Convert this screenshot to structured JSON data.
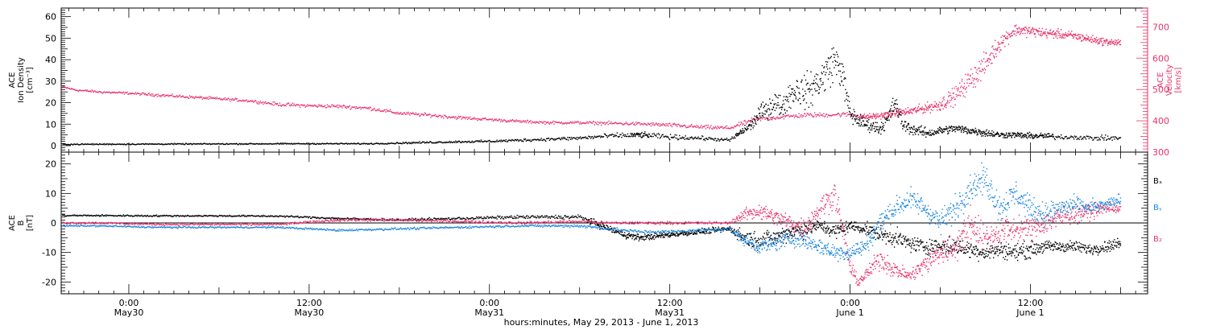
{
  "colors": {
    "axis": "#000000",
    "density": "#000000",
    "velocity": "#e8336a",
    "bx": "#000000",
    "by": "#1a86e0",
    "bz": "#e8336a"
  },
  "chart_data": [
    {
      "type": "scatter",
      "panel": "top",
      "ylabel_left_lines": [
        "ACE",
        "Ion Density",
        "[cm⁻³]"
      ],
      "ylabel_right_lines": [
        "ACE",
        "Velocity",
        "[km/s]"
      ],
      "ylim": [
        -3,
        64
      ],
      "yticks": [
        0,
        10,
        20,
        30,
        40,
        50,
        60
      ],
      "ylim_right": [
        300,
        760
      ],
      "yticks_right": [
        300,
        400,
        500,
        600,
        700
      ],
      "x_unit": "hours since 2013-05-29 00:00 UT",
      "xlim": [
        19.5,
        91.8
      ],
      "series": [
        {
          "key": "density",
          "axis": "left",
          "x": [
            19.6,
            24,
            30,
            36,
            40,
            42,
            44,
            46,
            48,
            50,
            52,
            54,
            56,
            58,
            60,
            62,
            63,
            64,
            65.5,
            66,
            66.5,
            67,
            67.5,
            68,
            68.5,
            69,
            69.5,
            70,
            70.5,
            71,
            71.5,
            72,
            72.5,
            73,
            73.5,
            74,
            74.5,
            75,
            75.5,
            76,
            76.5,
            77,
            77.5,
            78,
            79,
            80,
            81,
            82,
            83,
            84,
            85,
            86,
            87,
            88,
            89,
            90
          ],
          "y": [
            0.6,
            0.7,
            0.8,
            0.9,
            0.9,
            1.2,
            1.5,
            1.8,
            2.0,
            2.5,
            3.0,
            3.5,
            4.5,
            5.0,
            4.0,
            3.5,
            3.0,
            2.5,
            10,
            15,
            17,
            20,
            18,
            24,
            26,
            25,
            27,
            30,
            35,
            40,
            33,
            15,
            12,
            10,
            9,
            8,
            12,
            20,
            10,
            8,
            7,
            6,
            6,
            7,
            8,
            7,
            6,
            5,
            5,
            4.5,
            4.5,
            4,
            4,
            3.5,
            3.5,
            3.5
          ],
          "spread": [
            0.3,
            0.3,
            0.3,
            0.3,
            0.3,
            0.4,
            0.5,
            0.5,
            0.6,
            0.7,
            0.8,
            1.0,
            1.2,
            1.4,
            1.2,
            1.0,
            0.9,
            0.8,
            3,
            4,
            5,
            6,
            5,
            7,
            8,
            8,
            9,
            9,
            10,
            9,
            8,
            5,
            4,
            3,
            3,
            3,
            4,
            5,
            3,
            3,
            2.5,
            2.5,
            2,
            2,
            2,
            2,
            2,
            1.5,
            1.5,
            1.5,
            1.5,
            1.2,
            1.2,
            1.2,
            1.2,
            1.2
          ]
        },
        {
          "key": "velocity",
          "axis": "right",
          "x": [
            19.6,
            20.5,
            22,
            24,
            26,
            28,
            30,
            32,
            33,
            34,
            36,
            38,
            40,
            41,
            42,
            44,
            46,
            48,
            50,
            52,
            54,
            56,
            58,
            60,
            62,
            63,
            64,
            65.5,
            66,
            67,
            68,
            69,
            70,
            71,
            72,
            73,
            74,
            75,
            76,
            77,
            78,
            79,
            80,
            81,
            82,
            83,
            84,
            85,
            86,
            87,
            88,
            89,
            90
          ],
          "y": [
            508,
            498,
            492,
            488,
            482,
            476,
            470,
            464,
            458,
            452,
            448,
            446,
            440,
            432,
            424,
            418,
            410,
            404,
            398,
            394,
            394,
            392,
            390,
            386,
            380,
            378,
            377,
            402,
            406,
            410,
            414,
            418,
            418,
            420,
            420,
            412,
            416,
            424,
            430,
            440,
            452,
            480,
            530,
            580,
            650,
            690,
            686,
            680,
            676,
            670,
            660,
            652,
            648
          ],
          "spread": [
            4,
            4,
            4,
            4,
            5,
            5,
            5,
            5,
            5,
            6,
            6,
            6,
            6,
            6,
            6,
            6,
            6,
            5,
            5,
            5,
            5,
            6,
            6,
            7,
            7,
            7,
            7,
            8,
            8,
            8,
            8,
            8,
            8,
            8,
            8,
            10,
            10,
            12,
            14,
            16,
            22,
            30,
            40,
            40,
            30,
            20,
            18,
            16,
            15,
            15,
            14,
            12,
            12
          ]
        }
      ]
    },
    {
      "type": "scatter",
      "panel": "bottom",
      "ylabel_left_lines": [
        "ACE",
        "B",
        "[nT]"
      ],
      "ylim": [
        -24,
        24
      ],
      "yticks": [
        -20,
        -10,
        0,
        10,
        20
      ],
      "zero_line": true,
      "x_unit": "hours since 2013-05-29 00:00 UT",
      "xlim": [
        19.5,
        91.8
      ],
      "legend": [
        "Bₓ",
        "Bᵧ",
        "B₂"
      ],
      "series": [
        {
          "key": "bx",
          "name": "Bₓ",
          "x": [
            19.6,
            22,
            26,
            30,
            34,
            38,
            42,
            46,
            50,
            54,
            55,
            56,
            57,
            58,
            60,
            62,
            64,
            65,
            66,
            67,
            68,
            69,
            70,
            71,
            72,
            73,
            74,
            75,
            76,
            77,
            78,
            79,
            80,
            81,
            82,
            83,
            84,
            85,
            86,
            87,
            88,
            89,
            90
          ],
          "y": [
            2.5,
            2.5,
            2.4,
            2.4,
            2.3,
            1.5,
            1.0,
            1.5,
            2.0,
            2.0,
            0,
            -2,
            -4,
            -5,
            -4,
            -3,
            -2,
            -5,
            -6,
            -5,
            -3,
            -2,
            -1,
            -3,
            -1,
            -2,
            -4,
            -5,
            -7,
            -8,
            -8,
            -8,
            -9,
            -10,
            -9,
            -10,
            -9,
            -8,
            -8,
            -8,
            -9,
            -8,
            -7
          ],
          "spread": [
            0.3,
            0.3,
            0.3,
            0.3,
            0.3,
            0.4,
            0.4,
            0.5,
            0.6,
            0.8,
            1.2,
            1.2,
            1.2,
            1.2,
            1,
            1,
            1,
            3,
            3,
            3,
            3,
            3,
            2,
            3,
            2,
            2,
            3,
            3,
            3,
            3,
            3,
            3,
            3,
            3,
            3,
            3,
            3,
            2,
            2,
            2,
            2,
            2,
            2
          ]
        },
        {
          "key": "by",
          "name": "Bᵧ",
          "x": [
            19.6,
            22,
            26,
            30,
            34,
            38,
            42,
            46,
            50,
            54,
            56,
            58,
            60,
            62,
            64,
            65,
            66,
            67,
            68,
            69,
            70,
            71,
            72,
            73,
            74,
            75,
            76,
            77,
            78,
            79,
            80,
            81,
            82,
            83,
            84,
            85,
            86,
            87,
            88,
            89,
            90
          ],
          "y": [
            -1,
            -1,
            -1.5,
            -1.5,
            -1.5,
            -2.5,
            -2,
            -1.5,
            -1,
            -1,
            -2,
            -3,
            -3,
            -2.5,
            -2,
            -6,
            -8,
            -7,
            -5,
            -6,
            -8,
            -10,
            -10,
            -8,
            0,
            5,
            8,
            5,
            0,
            5,
            12,
            15,
            5,
            10,
            5,
            3,
            5,
            6,
            5,
            6,
            8
          ],
          "spread": [
            0.3,
            0.3,
            0.3,
            0.3,
            0.3,
            0.4,
            0.4,
            0.4,
            0.4,
            0.6,
            0.6,
            0.6,
            0.6,
            0.6,
            0.6,
            2,
            3,
            3,
            3,
            3,
            3,
            3,
            3,
            3,
            4,
            4,
            4,
            4,
            4,
            5,
            5,
            5,
            5,
            5,
            4,
            4,
            4,
            3,
            3,
            2,
            2
          ]
        },
        {
          "key": "bz",
          "name": "B₂",
          "x": [
            19.6,
            22,
            26,
            30,
            34,
            38,
            42,
            46,
            50,
            54,
            56,
            58,
            60,
            62,
            64,
            65,
            66,
            67,
            68,
            69,
            70,
            71,
            72,
            72.5,
            73,
            74,
            75,
            76,
            77,
            78,
            79,
            80,
            81,
            82,
            83,
            84,
            85,
            86,
            87,
            88,
            89,
            90
          ],
          "y": [
            0,
            0,
            -0.5,
            -0.5,
            -0.5,
            1,
            1,
            0.5,
            0,
            0.5,
            0,
            0,
            0,
            0,
            0,
            3,
            4,
            2,
            0,
            -2,
            5,
            10,
            -15,
            -20,
            -18,
            -12,
            -16,
            -18,
            -14,
            -10,
            -8,
            0,
            -5,
            -3,
            -2,
            -2,
            0,
            2,
            3,
            4,
            5,
            5
          ],
          "spread": [
            0.4,
            0.4,
            0.4,
            0.4,
            0.4,
            0.5,
            0.5,
            0.5,
            0.5,
            0.5,
            0.5,
            0.5,
            0.5,
            0.5,
            0.5,
            2,
            3,
            3,
            3,
            4,
            4,
            5,
            3,
            2,
            2,
            4,
            3,
            2,
            4,
            5,
            5,
            6,
            5,
            5,
            4,
            4,
            4,
            4,
            3,
            3,
            2,
            2
          ]
        }
      ]
    }
  ],
  "xaxis": {
    "ticks": [
      {
        "x": 24,
        "time": "0:00",
        "date": "May30"
      },
      {
        "x": 36,
        "time": "12:00",
        "date": "May30"
      },
      {
        "x": 48,
        "time": "0:00",
        "date": "May31"
      },
      {
        "x": 60,
        "time": "12:00",
        "date": "May31"
      },
      {
        "x": 72,
        "time": "0:00",
        "date": "June 1"
      },
      {
        "x": 84,
        "time": "12:00",
        "date": "June 1"
      }
    ],
    "label": "hours:minutes, May 29, 2013 - June  1, 2013"
  }
}
